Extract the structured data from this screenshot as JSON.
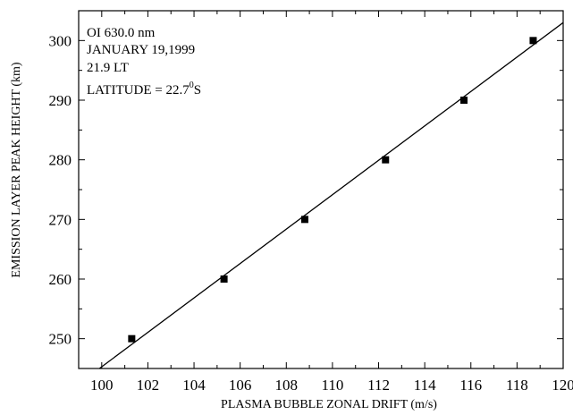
{
  "chart_data": {
    "type": "scatter",
    "title": "",
    "xlabel": "PLASMA BUBBLE ZONAL DRIFT (m/s)",
    "ylabel": "EMISSION LAYER PEAK HEIGHT (km)",
    "xlim": [
      99,
      120
    ],
    "ylim": [
      245,
      305
    ],
    "xticks": [
      100,
      102,
      104,
      106,
      108,
      110,
      112,
      114,
      116,
      118,
      120
    ],
    "yticks": [
      250,
      260,
      270,
      280,
      290,
      300
    ],
    "xtick_labels": [
      "100",
      "102",
      "104",
      "106",
      "108",
      "110",
      "112",
      "114",
      "116",
      "118",
      "120"
    ],
    "ytick_labels": [
      "250",
      "260",
      "270",
      "280",
      "290",
      "300"
    ],
    "grid": false,
    "series": [
      {
        "marker": "square",
        "color": "#000000",
        "points": [
          {
            "x": 101.3,
            "y": 250
          },
          {
            "x": 105.3,
            "y": 260
          },
          {
            "x": 108.8,
            "y": 270
          },
          {
            "x": 112.3,
            "y": 280
          },
          {
            "x": 115.7,
            "y": 290
          },
          {
            "x": 118.7,
            "y": 300
          }
        ]
      }
    ],
    "fit_line": {
      "x1": 99.9,
      "y1": 245,
      "x2": 120,
      "y2": 303
    },
    "annotations": {
      "line1": "OI 630.0 nm",
      "line2": "JANUARY 19,1999",
      "line3": "21.9 LT",
      "line4_main": "LATITUDE = 22.7",
      "line4_sup": "0",
      "line4_end": "S"
    }
  }
}
